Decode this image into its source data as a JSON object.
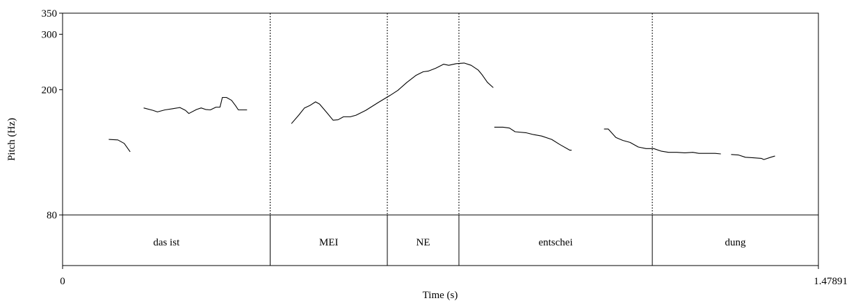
{
  "chart_data": {
    "type": "line",
    "xlabel": "Time (s)",
    "ylabel": "Pitch (Hz)",
    "xlim": [
      0,
      1.47891
    ],
    "ylim": [
      80,
      350
    ],
    "x_ticks": [
      "0",
      "1.47891"
    ],
    "y_ticks": [
      {
        "value": 80,
        "label": "80"
      },
      {
        "value": 200,
        "label": "200"
      },
      {
        "value": 300,
        "label": "300"
      },
      {
        "value": 350,
        "label": "350"
      }
    ],
    "grid": false,
    "series": [
      {
        "values": [
          [
            0.0904,
            139
          ],
          [
            0.1082,
            138.5
          ],
          [
            0.1205,
            135
          ],
          [
            0.1323,
            127
          ]
        ]
      },
      {
        "values": [
          [
            0.1586,
            175
          ],
          [
            0.1766,
            172
          ],
          [
            0.1856,
            170
          ],
          [
            0.2002,
            172.5
          ],
          [
            0.2154,
            174
          ],
          [
            0.2296,
            175.5
          ],
          [
            0.2404,
            172
          ],
          [
            0.2471,
            168
          ],
          [
            0.2622,
            173
          ],
          [
            0.2711,
            175
          ],
          [
            0.28,
            173
          ],
          [
            0.2891,
            172.5
          ],
          [
            0.3003,
            176
          ],
          [
            0.308,
            176
          ],
          [
            0.3127,
            189
          ],
          [
            0.3205,
            189
          ],
          [
            0.3306,
            185
          ],
          [
            0.3383,
            178
          ],
          [
            0.344,
            172.5
          ],
          [
            0.361,
            172.5
          ]
        ]
      },
      {
        "values": [
          [
            0.4477,
            156
          ],
          [
            0.4621,
            166
          ],
          [
            0.4734,
            175
          ],
          [
            0.4836,
            178
          ],
          [
            0.495,
            183
          ],
          [
            0.5029,
            180
          ],
          [
            0.5172,
            169
          ],
          [
            0.5292,
            160
          ],
          [
            0.5392,
            160.5
          ],
          [
            0.5494,
            164
          ],
          [
            0.5629,
            164
          ],
          [
            0.5743,
            166
          ],
          [
            0.5933,
            172
          ],
          [
            0.6175,
            182
          ],
          [
            0.6412,
            192
          ],
          [
            0.656,
            199
          ],
          [
            0.6737,
            211
          ],
          [
            0.6913,
            222
          ],
          [
            0.7056,
            228
          ],
          [
            0.7154,
            229
          ],
          [
            0.7302,
            234
          ],
          [
            0.7455,
            241
          ],
          [
            0.7557,
            239
          ],
          [
            0.7702,
            242
          ],
          [
            0.7857,
            243
          ],
          [
            0.7994,
            239
          ],
          [
            0.813,
            231
          ],
          [
            0.821,
            223
          ],
          [
            0.8313,
            211
          ],
          [
            0.8427,
            203
          ]
        ]
      },
      {
        "values": [
          [
            0.8448,
            152
          ],
          [
            0.8617,
            152
          ],
          [
            0.8744,
            151
          ],
          [
            0.8854,
            147
          ],
          [
            0.9064,
            146
          ],
          [
            0.9214,
            144
          ],
          [
            0.9373,
            142.5
          ],
          [
            0.9571,
            139
          ],
          [
            0.9727,
            134
          ],
          [
            0.9925,
            128.5
          ],
          [
            0.996,
            128.5
          ]
        ]
      },
      {
        "values": [
          [
            1.0594,
            150
          ],
          [
            1.0678,
            150
          ],
          [
            1.0826,
            141
          ],
          [
            1.0962,
            138
          ],
          [
            1.1104,
            136
          ],
          [
            1.1264,
            131.5
          ],
          [
            1.1416,
            130
          ],
          [
            1.1568,
            130
          ],
          [
            1.1719,
            127.5
          ],
          [
            1.1857,
            126.5
          ],
          [
            1.2017,
            126.5
          ],
          [
            1.2175,
            126
          ],
          [
            1.2331,
            126.5
          ],
          [
            1.245,
            125.5
          ],
          [
            1.2606,
            125.5
          ],
          [
            1.2767,
            125.5
          ],
          [
            1.288,
            125
          ]
        ]
      },
      {
        "values": [
          [
            1.3081,
            124.5
          ],
          [
            1.3228,
            124
          ],
          [
            1.336,
            122
          ],
          [
            1.3517,
            121.5
          ],
          [
            1.3672,
            121
          ],
          [
            1.3721,
            120
          ],
          [
            1.3856,
            122
          ],
          [
            1.3931,
            123
          ],
          [
            1.394,
            123
          ]
        ]
      }
    ],
    "tiers": [
      {
        "start": 0,
        "end": 0.4062,
        "label": "das ist"
      },
      {
        "start": 0.4062,
        "end": 0.6354,
        "label": "MEI"
      },
      {
        "start": 0.6354,
        "end": 0.7755,
        "label": "NE"
      },
      {
        "start": 0.7755,
        "end": 1.1539,
        "label": "entschei"
      },
      {
        "start": 1.1539,
        "end": 1.47891,
        "label": "dung"
      }
    ]
  }
}
